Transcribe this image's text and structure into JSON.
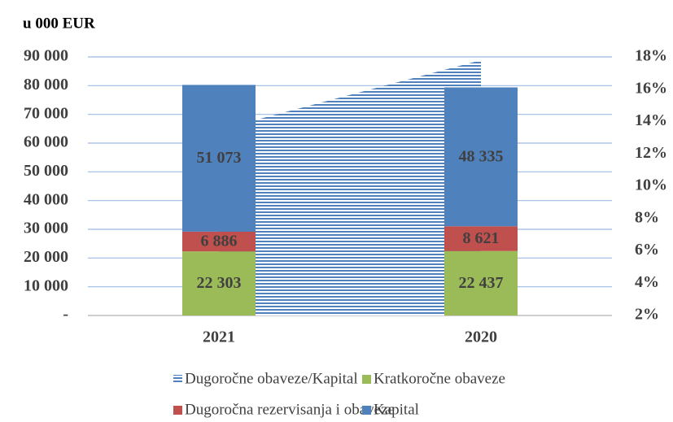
{
  "chart_data": {
    "type": "bar",
    "stacked": true,
    "title": "u 000 EUR",
    "categories": [
      "2021",
      "2020"
    ],
    "series": [
      {
        "name": "Dugoročne obaveze/Kapital",
        "type": "area",
        "axis": "y2",
        "color": "#4f81bd",
        "values": [
          13.5,
          17.8
        ]
      },
      {
        "name": "Kratkoročne obaveze",
        "type": "bar",
        "color": "#9bbb59",
        "values": [
          22303,
          22437
        ],
        "value_labels": [
          "22 303",
          "22 437"
        ]
      },
      {
        "name": "Dugoročna rezervisanja i obaveze",
        "type": "bar",
        "color": "#c0504d",
        "values": [
          6886,
          8621
        ],
        "value_labels": [
          "6 886",
          "8 621"
        ]
      },
      {
        "name": "Kapital",
        "type": "bar",
        "color": "#4f81bd",
        "values": [
          51073,
          48335
        ],
        "value_labels": [
          "51 073",
          "48 335"
        ]
      }
    ],
    "ylim": [
      0,
      90000
    ],
    "yticks": [
      {
        "value": 0,
        "label": "-"
      },
      {
        "value": 10000,
        "label": "10 000"
      },
      {
        "value": 20000,
        "label": "20 000"
      },
      {
        "value": 30000,
        "label": "30 000"
      },
      {
        "value": 40000,
        "label": "40 000"
      },
      {
        "value": 50000,
        "label": "50 000"
      },
      {
        "value": 60000,
        "label": "60 000"
      },
      {
        "value": 70000,
        "label": "70 000"
      },
      {
        "value": 80000,
        "label": "80 000"
      },
      {
        "value": 90000,
        "label": "90 000"
      }
    ],
    "y2lim": [
      2,
      18
    ],
    "y2ticks": [
      {
        "value": 2,
        "label": "2%"
      },
      {
        "value": 4,
        "label": "4%"
      },
      {
        "value": 6,
        "label": "6%"
      },
      {
        "value": 8,
        "label": "8%"
      },
      {
        "value": 10,
        "label": "10%"
      },
      {
        "value": 12,
        "label": "12%"
      },
      {
        "value": 14,
        "label": "14%"
      },
      {
        "value": 16,
        "label": "16%"
      },
      {
        "value": 18,
        "label": "18%"
      }
    ],
    "grid": true
  }
}
